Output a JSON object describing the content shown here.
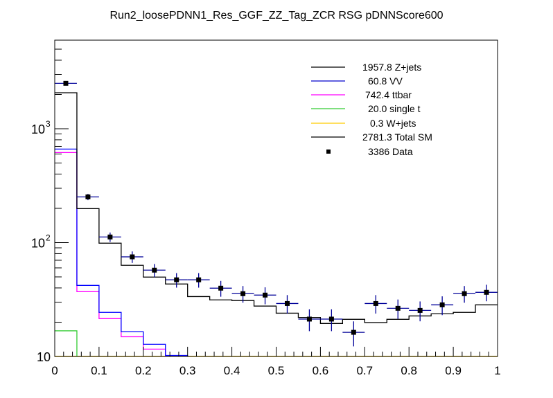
{
  "chart_data": {
    "type": "bar",
    "title": "Run2_loosePDNN1_Res_GGF_ZZ_Tag_ZCR RSG  pDNNScore600",
    "xlabel": "",
    "ylabel": "",
    "xlim": [
      0,
      1
    ],
    "ylim": [
      10,
      6000
    ],
    "yscale": "log",
    "grid": false,
    "legend_position": "top-right",
    "x_tick_labels": [
      "0",
      "0.1",
      "0.2",
      "0.3",
      "0.4",
      "0.5",
      "0.6",
      "0.7",
      "0.8",
      "0.9",
      "1"
    ],
    "y_tick_labels": [
      {
        "base": "10",
        "exp": ""
      },
      {
        "base": "10",
        "exp": "2"
      },
      {
        "base": "10",
        "exp": "3"
      }
    ],
    "bin_edges": [
      0,
      0.05,
      0.1,
      0.15,
      0.2,
      0.25,
      0.3,
      0.35,
      0.4,
      0.45,
      0.5,
      0.55,
      0.6,
      0.65,
      0.7,
      0.75,
      0.8,
      0.85,
      0.9,
      0.95,
      1.0
    ],
    "series": [
      {
        "name": "Total SM",
        "color": "#000000",
        "values": [
          2070,
          199,
          98.9,
          63.2,
          49.8,
          43.3,
          33.6,
          31.4,
          31.0,
          27.7,
          24.0,
          22.0,
          19.5,
          21.2,
          19.8,
          21.2,
          22.7,
          23.7,
          24.4,
          28.4
        ]
      },
      {
        "name": "VV",
        "color": "#0000ff",
        "values": [
          663,
          42.1,
          24.4,
          16.5,
          12.8,
          10.2,
          null,
          null,
          null,
          null,
          null,
          null,
          null,
          null,
          null,
          null,
          null,
          null,
          null,
          null
        ]
      },
      {
        "name": "ttbar",
        "color": "#ff00ff",
        "values": [
          618,
          37.1,
          21.5,
          14.9,
          11.6,
          null,
          null,
          null,
          null,
          null,
          null,
          null,
          null,
          null,
          null,
          null,
          null,
          null,
          null,
          null
        ]
      },
      {
        "name": "single t",
        "color": "#33cc33",
        "values": [
          16.8,
          null,
          null,
          null,
          null,
          null,
          null,
          null,
          null,
          null,
          null,
          null,
          null,
          null,
          null,
          null,
          null,
          null,
          null,
          null
        ]
      },
      {
        "name": "W+jets",
        "color": "#ffcc00",
        "values": [
          10.05,
          10.05,
          10.05,
          10.05,
          10.05,
          10.05,
          10.05,
          10.05,
          10.05,
          10.05,
          10.05,
          10.05,
          10.05,
          10.05,
          10.05,
          10.05,
          10.05,
          10.05,
          10.05,
          10.05
        ]
      }
    ],
    "data_points": {
      "name": "Data",
      "marker_color": "#000000",
      "error_color": "#000099",
      "values": [
        2507,
        252,
        112,
        75,
        57.3,
        47.1,
        47.1,
        39.8,
        35.6,
        34.6,
        29.2,
        21.3,
        21.3,
        16.3,
        29.2,
        26.5,
        25.4,
        28.4,
        35.6,
        36.6
      ]
    },
    "legend": [
      {
        "label": "1957.8 Z+jets",
        "color": "#000000",
        "style": "line"
      },
      {
        "label": "60.8 VV",
        "color": "#0000cc",
        "style": "line"
      },
      {
        "label": "742.4 ttbar",
        "color": "#ff00ff",
        "style": "line"
      },
      {
        "label": "20.0 single t",
        "color": "#33cc33",
        "style": "line"
      },
      {
        "label": "0.3 W+jets",
        "color": "#ffcc00",
        "style": "line"
      },
      {
        "label": "2781.3 Total SM",
        "color": "#000000",
        "style": "line"
      },
      {
        "label": "3386 Data",
        "color": "#000000",
        "style": "marker"
      }
    ]
  }
}
